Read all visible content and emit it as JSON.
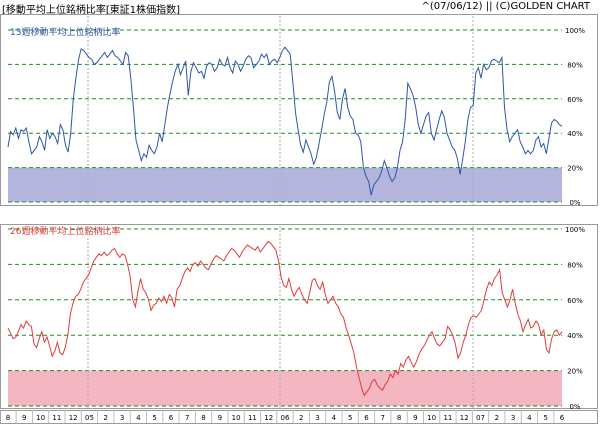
{
  "header": {
    "title": "[移動平均上位銘柄比率[東証1株価指数]",
    "date": "^(07/06/12)",
    "copyright": "|| (C)GOLDEN CHART"
  },
  "colors": {
    "background": "#ffffff",
    "panel_border": "#9a9a9a",
    "grid": "#1d8f1d",
    "line_13w": "#2e56a8",
    "line_26w": "#e23b3b",
    "band_13w": "#b3b5de",
    "band_26w": "#f4b6c0",
    "tick_label": "#000000"
  },
  "chart_data": [
    {
      "type": "line",
      "title": "13週移動平均上位銘柄比率",
      "ylim": [
        0,
        100
      ],
      "yticks": [
        "0%",
        "20%",
        "40%",
        "60%",
        "80%",
        "100%"
      ],
      "shaded_band": [
        0,
        20
      ],
      "grid": true,
      "series": [
        {
          "values": [
            32,
            41,
            39,
            43,
            37,
            42,
            41,
            43,
            35,
            28,
            30,
            32,
            38,
            35,
            30,
            42,
            37,
            40,
            38,
            34,
            45,
            42,
            33,
            29,
            40,
            60,
            72,
            83,
            89,
            88,
            86,
            84,
            83,
            80,
            81,
            83,
            85,
            87,
            84,
            86,
            88,
            85,
            84,
            82,
            80,
            87,
            85,
            72,
            55,
            36,
            30,
            24,
            28,
            26,
            33,
            30,
            28,
            32,
            40,
            35,
            45,
            55,
            63,
            70,
            76,
            80,
            74,
            78,
            82,
            62,
            76,
            81,
            78,
            75,
            76,
            72,
            79,
            81,
            80,
            76,
            78,
            83,
            80,
            79,
            84,
            78,
            75,
            82,
            80,
            76,
            79,
            83,
            85,
            84,
            78,
            80,
            82,
            86,
            84,
            86,
            80,
            82,
            83,
            81,
            84,
            88,
            90,
            88,
            86,
            70,
            52,
            42,
            33,
            29,
            36,
            32,
            28,
            22,
            26,
            34,
            42,
            51,
            58,
            70,
            73,
            64,
            52,
            48,
            60,
            66,
            55,
            50,
            48,
            40,
            39,
            35,
            20,
            15,
            12,
            4,
            10,
            12,
            14,
            18,
            24,
            20,
            15,
            12,
            14,
            20,
            30,
            35,
            48,
            69,
            66,
            62,
            55,
            45,
            40,
            45,
            50,
            52,
            40,
            36,
            42,
            48,
            53,
            49,
            40,
            36,
            32,
            30,
            25,
            16,
            25,
            35,
            48,
            55,
            56,
            75,
            78,
            72,
            80,
            77,
            78,
            82,
            83,
            82,
            81,
            84,
            55,
            42,
            35,
            38,
            40,
            42,
            35,
            32,
            28,
            30,
            28,
            30,
            36,
            38,
            32,
            34,
            28,
            37,
            46,
            48,
            47,
            45,
            44
          ]
        }
      ]
    },
    {
      "type": "line",
      "title": "26週移動平均上位銘柄比率",
      "ylim": [
        0,
        100
      ],
      "yticks": [
        "0%",
        "20%",
        "40%",
        "60%",
        "80%",
        "100%"
      ],
      "shaded_band": [
        0,
        20
      ],
      "grid": true,
      "series": [
        {
          "values": [
            44,
            41,
            38,
            39,
            42,
            46,
            44,
            48,
            46,
            45,
            35,
            33,
            38,
            42,
            36,
            39,
            34,
            28,
            31,
            36,
            30,
            29,
            33,
            40,
            52,
            58,
            62,
            63,
            66,
            70,
            72,
            74,
            78,
            82,
            84,
            86,
            85,
            87,
            85,
            86,
            88,
            89,
            86,
            84,
            86,
            85,
            80,
            73,
            60,
            56,
            65,
            72,
            66,
            64,
            60,
            54,
            57,
            58,
            61,
            59,
            62,
            58,
            63,
            61,
            56,
            66,
            68,
            72,
            76,
            78,
            76,
            80,
            81,
            79,
            82,
            80,
            78,
            77,
            80,
            83,
            85,
            84,
            83,
            82,
            85,
            87,
            89,
            88,
            86,
            84,
            87,
            89,
            91,
            90,
            89,
            88,
            90,
            87,
            89,
            91,
            93,
            92,
            90,
            88,
            82,
            73,
            68,
            67,
            72,
            66,
            62,
            65,
            67,
            63,
            60,
            58,
            64,
            71,
            72,
            68,
            66,
            70,
            63,
            58,
            60,
            62,
            58,
            56,
            52,
            50,
            44,
            40,
            35,
            30,
            22,
            16,
            10,
            6,
            8,
            10,
            14,
            15,
            12,
            10,
            9,
            12,
            14,
            18,
            16,
            20,
            18,
            24,
            22,
            26,
            28,
            25,
            22,
            25,
            29,
            32,
            34,
            37,
            40,
            42,
            38,
            35,
            34,
            36,
            38,
            45,
            43,
            40,
            35,
            27,
            30,
            36,
            40,
            46,
            50,
            51,
            50,
            52,
            54,
            60,
            66,
            70,
            68,
            72,
            74,
            77,
            64,
            60,
            56,
            60,
            66,
            58,
            52,
            48,
            42,
            46,
            49,
            44,
            45,
            48,
            46,
            40,
            43,
            32,
            30,
            38,
            42,
            43,
            40,
            42
          ]
        }
      ]
    }
  ],
  "x_axis": {
    "ticks": [
      "8",
      "9",
      "10",
      "11",
      "12",
      "05",
      "2",
      "3",
      "4",
      "5",
      "6",
      "7",
      "8",
      "9",
      "10",
      "11",
      "12",
      "06",
      "2",
      "3",
      "4",
      "5",
      "6",
      "7",
      "8",
      "9",
      "10",
      "11",
      "12",
      "07",
      "2",
      "3",
      "4",
      "5",
      "6"
    ]
  }
}
